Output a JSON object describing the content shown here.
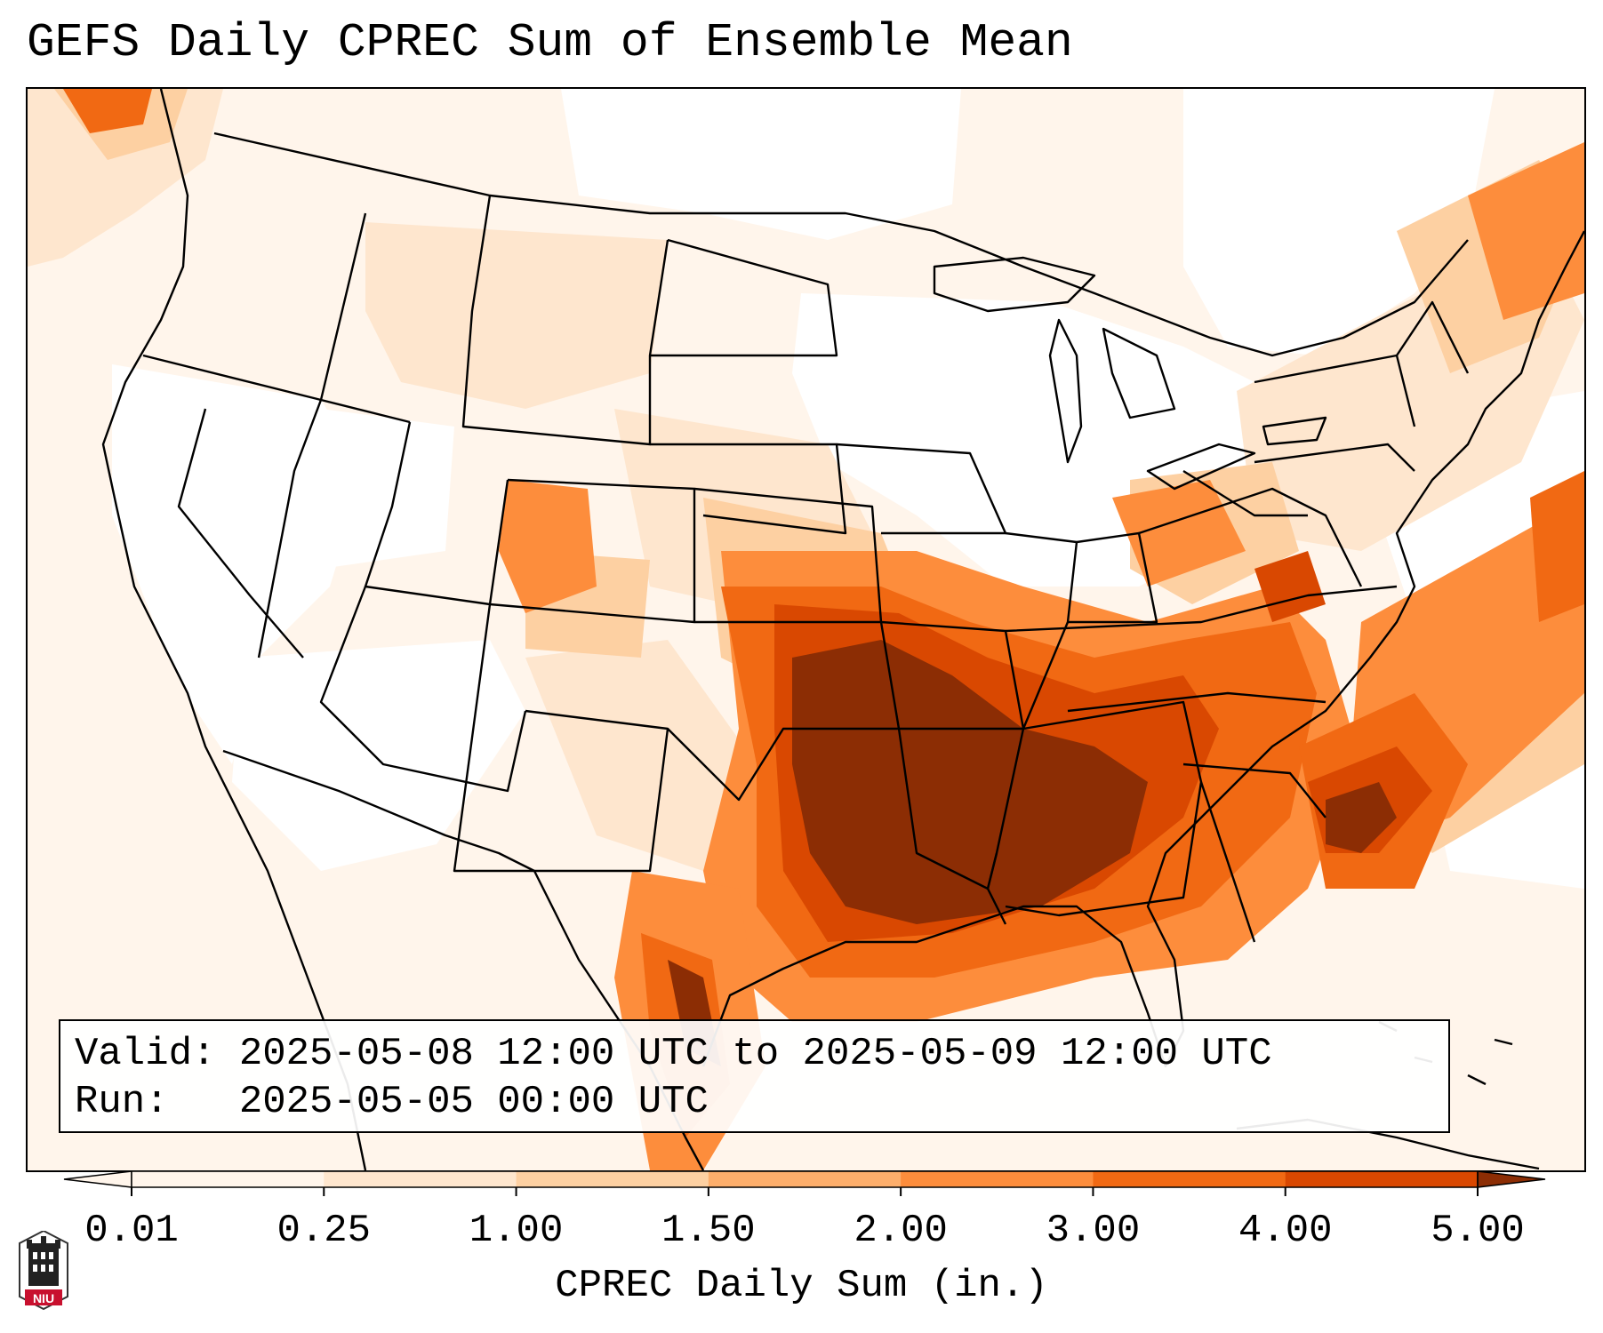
{
  "title": "GEFS Daily CPREC Sum of Ensemble Mean",
  "info": {
    "valid_line": "Valid: 2025-05-08 12:00 UTC to 2025-05-09 12:00 UTC",
    "run_line": "Run:   2025-05-05 00:00 UTC"
  },
  "colorbar": {
    "label": "CPREC Daily Sum (in.)",
    "ticks": [
      "0.01",
      "0.25",
      "1.00",
      "1.50",
      "2.00",
      "3.00",
      "4.00",
      "5.00"
    ],
    "colors": [
      "#fff5eb",
      "#fee6ce",
      "#fdd0a2",
      "#fdae6b",
      "#fd8d3c",
      "#f16913",
      "#d94801",
      "#8c2d04"
    ],
    "extend": "both"
  },
  "map": {
    "region": "Contiguous United States",
    "colors": {
      "lowest": "#fff5eb",
      "light": "#fee6ce",
      "pale": "#fdd0a2",
      "tan": "#fdae6b",
      "orange": "#fd8d3c",
      "deep_orange": "#f16913",
      "red_orange": "#d94801",
      "brown": "#8c2d04"
    }
  },
  "logo": {
    "text": "NIU",
    "icon": "niu-tower-logo-icon"
  }
}
